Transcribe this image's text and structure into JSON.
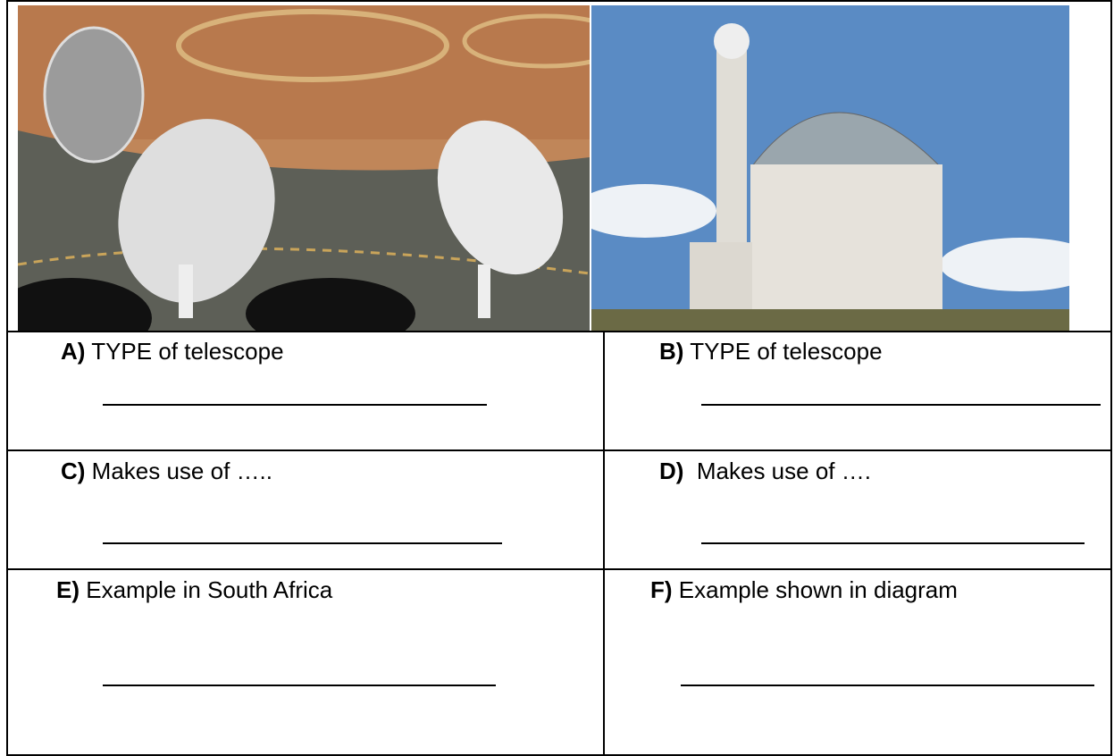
{
  "cells": [
    {
      "letter": "A)",
      "text": "TYPE of telescope"
    },
    {
      "letter": "B)",
      "text": "TYPE of telescope"
    },
    {
      "letter": "C)",
      "text": "Makes use of ….."
    },
    {
      "letter": "D)",
      "text": " Makes use of …."
    },
    {
      "letter": "E)",
      "text": "Example in South Africa"
    },
    {
      "letter": "F)",
      "text": "Example shown in diagram"
    }
  ]
}
